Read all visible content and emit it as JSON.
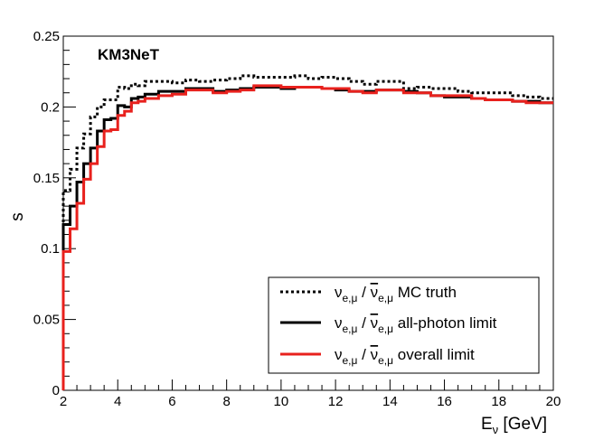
{
  "chart_data": {
    "type": "line",
    "title": "",
    "watermark": "KM3NeT",
    "xlabel": "E",
    "xlabel_sub": "ν",
    "xlabel_unit": " [GeV]",
    "ylabel": "s",
    "xlim": [
      2,
      20
    ],
    "ylim": [
      0,
      0.25
    ],
    "xticks": [
      2,
      4,
      6,
      8,
      10,
      12,
      14,
      16,
      18,
      20
    ],
    "yticks": [
      0,
      0.05,
      0.1,
      0.15,
      0.2,
      0.25
    ],
    "ytick_labels": [
      "0",
      "0.05",
      "0.1",
      "0.15",
      "0.2",
      "0.25"
    ],
    "bin_edges": [
      2.0,
      2.25,
      2.5,
      2.75,
      3.0,
      3.25,
      3.5,
      3.75,
      4.0,
      4.25,
      4.5,
      4.75,
      5.0,
      5.5,
      6.0,
      6.5,
      7.0,
      7.5,
      8.0,
      8.5,
      9.0,
      9.5,
      10.0,
      10.5,
      11.0,
      11.5,
      12.0,
      12.5,
      13.0,
      13.5,
      14.0,
      14.5,
      15.0,
      15.5,
      16.0,
      16.5,
      17.0,
      17.5,
      18.0,
      18.5,
      19.0,
      19.5,
      20.0
    ],
    "series": [
      {
        "name": "MC truth",
        "color": "#000000",
        "style": "dotted",
        "values": [
          0.141,
          0.156,
          0.171,
          0.181,
          0.193,
          0.2,
          0.205,
          0.205,
          0.214,
          0.213,
          0.216,
          0.215,
          0.218,
          0.218,
          0.217,
          0.219,
          0.218,
          0.219,
          0.22,
          0.222,
          0.221,
          0.221,
          0.221,
          0.222,
          0.22,
          0.221,
          0.22,
          0.218,
          0.216,
          0.218,
          0.218,
          0.213,
          0.214,
          0.213,
          0.213,
          0.211,
          0.21,
          0.21,
          0.21,
          0.208,
          0.207,
          0.206
        ]
      },
      {
        "name": "all-photon limit",
        "color": "#000000",
        "style": "solid",
        "values": [
          0.117,
          0.13,
          0.147,
          0.16,
          0.171,
          0.183,
          0.191,
          0.192,
          0.201,
          0.2,
          0.206,
          0.207,
          0.209,
          0.211,
          0.211,
          0.213,
          0.213,
          0.211,
          0.212,
          0.213,
          0.214,
          0.214,
          0.213,
          0.214,
          0.214,
          0.213,
          0.212,
          0.211,
          0.211,
          0.212,
          0.212,
          0.211,
          0.21,
          0.208,
          0.207,
          0.207,
          0.206,
          0.205,
          0.205,
          0.204,
          0.204,
          0.203
        ]
      },
      {
        "name": "overall limit",
        "color": "#e8211d",
        "style": "solid",
        "values": [
          0.098,
          0.114,
          0.132,
          0.149,
          0.16,
          0.172,
          0.183,
          0.184,
          0.194,
          0.197,
          0.203,
          0.204,
          0.206,
          0.208,
          0.209,
          0.212,
          0.212,
          0.21,
          0.211,
          0.212,
          0.215,
          0.215,
          0.214,
          0.214,
          0.214,
          0.213,
          0.213,
          0.211,
          0.21,
          0.212,
          0.212,
          0.21,
          0.21,
          0.208,
          0.208,
          0.208,
          0.206,
          0.205,
          0.205,
          0.204,
          0.203,
          0.203
        ]
      }
    ],
    "legend": {
      "position": "bottom-right",
      "entries": [
        {
          "series": "MC truth",
          "text": " MC truth"
        },
        {
          "series": "all-photon limit",
          "text": " all-photon limit"
        },
        {
          "series": "overall limit",
          "text": " overall limit"
        }
      ],
      "nu": "ν",
      "nubar": "ν",
      "sub": "e,μ",
      "slash": " / "
    }
  }
}
